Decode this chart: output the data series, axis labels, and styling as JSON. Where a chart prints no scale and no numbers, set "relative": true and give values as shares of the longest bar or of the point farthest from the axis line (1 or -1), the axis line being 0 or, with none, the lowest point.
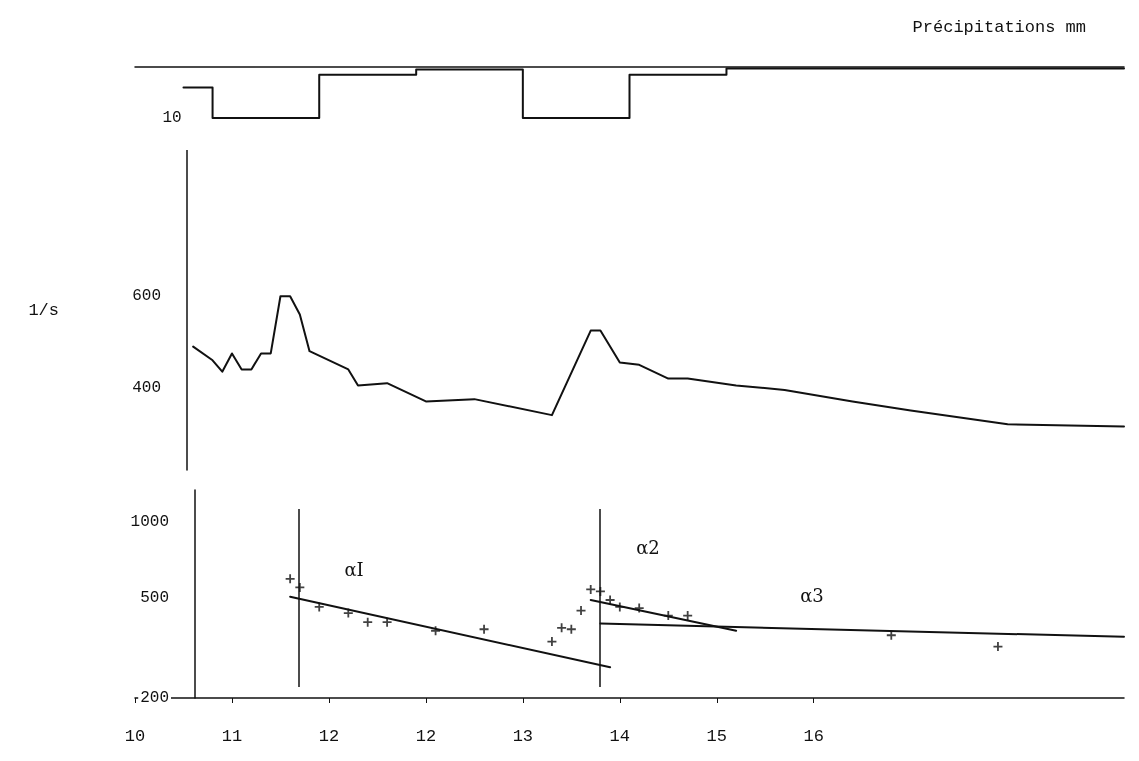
{
  "chart_data": [
    {
      "type": "step",
      "title": "Précipitations mm",
      "relative": true,
      "tick_labels": false,
      "grid": false,
      "color": "#111111",
      "annotations": [
        "10"
      ],
      "categories": [
        null,
        null,
        null,
        null,
        null,
        null,
        null,
        null,
        null,
        null,
        null,
        null,
        null,
        null,
        null,
        null,
        null,
        null,
        null,
        null,
        null,
        null,
        null,
        null,
        null,
        null,
        null,
        null,
        null,
        null,
        null,
        null,
        null,
        null,
        null,
        null,
        null,
        null,
        null,
        null,
        null,
        null,
        null,
        null,
        null,
        null,
        null,
        null,
        null,
        null,
        null,
        null,
        null,
        null,
        null,
        null,
        null,
        null,
        null,
        null,
        null,
        null,
        null,
        null,
        null,
        null,
        null,
        null,
        null,
        null,
        null,
        null,
        null,
        null,
        null,
        null,
        null,
        null,
        null,
        null,
        null,
        null,
        null,
        null,
        null,
        null,
        null,
        null,
        null,
        null,
        null,
        null,
        null,
        null,
        null,
        null,
        null,
        null,
        null,
        null,
        null,
        null,
        null
      ],
      "values": [
        null,
        null,
        null,
        null,
        null,
        -0.4,
        -0.4,
        -0.4,
        -1,
        -1,
        -1,
        -1,
        -1,
        -1,
        -1,
        -1,
        -1,
        -1,
        -1,
        -0.15,
        -0.15,
        -0.15,
        -0.15,
        -0.15,
        -0.15,
        -0.15,
        -0.15,
        -0.15,
        -0.15,
        -0.05,
        -0.05,
        -0.05,
        -0.05,
        -0.05,
        -0.05,
        -0.05,
        -0.05,
        -0.05,
        -0.05,
        -0.05,
        -1,
        -1,
        -1,
        -1,
        -1,
        -1,
        -1,
        -1,
        -1,
        -1,
        -1,
        -0.15,
        -0.15,
        -0.15,
        -0.15,
        -0.15,
        -0.15,
        -0.15,
        -0.15,
        -0.15,
        -0.15,
        -0.03,
        -0.03,
        -0.03,
        -0.03,
        -0.03,
        -0.03,
        -0.03,
        -0.03,
        -0.03,
        -0.03,
        -0.03,
        -0.03,
        -0.03,
        -0.03,
        -0.03,
        -0.03,
        -0.03,
        -0.03,
        -0.03,
        -0.03,
        -0.03,
        -0.03,
        -0.03,
        -0.03,
        -0.03,
        -0.03,
        -0.03,
        -0.03,
        -0.03,
        -0.03,
        -0.03,
        -0.03,
        -0.03,
        -0.03,
        -0.03,
        -0.03,
        -0.03,
        -0.03,
        -0.03,
        -0.03,
        -0.03,
        -0.03
      ]
    },
    {
      "type": "line",
      "ylabel": "1/s",
      "color": "#111111",
      "ylim": [
        220,
        920
      ],
      "yticks": [
        400,
        600
      ],
      "tick_labels": "y",
      "grid": false,
      "categories": [
        null,
        null,
        null,
        null,
        null,
        null,
        null,
        null,
        null,
        null,
        null,
        null,
        null,
        null,
        null,
        null,
        null,
        null,
        null,
        null,
        null,
        null,
        null,
        null,
        null,
        null,
        null,
        null,
        null,
        null,
        null,
        null,
        null,
        null,
        null,
        null,
        null,
        null,
        null,
        null,
        null,
        null,
        null,
        null,
        null,
        null,
        null,
        null,
        null,
        null,
        null,
        null,
        null,
        null,
        null,
        null,
        null,
        null,
        null,
        null,
        null,
        null,
        null,
        null,
        null,
        null,
        null,
        null,
        null,
        null,
        null,
        null,
        null,
        null,
        null,
        null,
        null,
        null,
        null,
        null,
        null,
        null,
        null,
        null,
        null,
        null,
        null,
        null,
        null,
        null,
        null,
        null,
        null,
        null,
        null,
        null,
        null,
        null,
        null,
        null,
        null,
        null,
        null
      ],
      "values": [
        null,
        null,
        null,
        null,
        null,
        null,
        490,
        null,
        460,
        435,
        475,
        440,
        440,
        475,
        475,
        600,
        600,
        560,
        480,
        null,
        null,
        null,
        440,
        405,
        null,
        null,
        410,
        null,
        null,
        null,
        370,
        null,
        null,
        null,
        null,
        375,
        null,
        null,
        null,
        null,
        null,
        null,
        null,
        340,
        null,
        null,
        null,
        525,
        525,
        null,
        455,
        null,
        450,
        null,
        null,
        420,
        null,
        420,
        null,
        null,
        null,
        null,
        405,
        null,
        null,
        null,
        null,
        395,
        null,
        null,
        null,
        null,
        null,
        null,
        370,
        null,
        null,
        null,
        null,
        null,
        350,
        null,
        null,
        null,
        null,
        null,
        null,
        null,
        null,
        null,
        320,
        null,
        null,
        null,
        null,
        null,
        null,
        null,
        null,
        null,
        null,
        null,
        315
      ]
    },
    {
      "type": "scatter",
      "log": "y",
      "marker": "cross",
      "ylim": [
        200,
        1340
      ],
      "yticks": [
        200,
        500,
        1000
      ],
      "grid": false,
      "annotations": [
        "αI",
        "α2",
        "α3"
      ],
      "categories": [
        "10",
        null,
        null,
        null,
        null,
        null,
        null,
        null,
        null,
        null,
        "11",
        null,
        null,
        null,
        null,
        null,
        null,
        null,
        null,
        null,
        "12",
        null,
        null,
        null,
        null,
        null,
        null,
        null,
        null,
        null,
        "12",
        null,
        null,
        null,
        null,
        null,
        null,
        null,
        null,
        null,
        "13",
        null,
        null,
        null,
        null,
        null,
        null,
        null,
        null,
        null,
        "14",
        null,
        null,
        null,
        null,
        null,
        null,
        null,
        null,
        null,
        "15",
        null,
        null,
        null,
        null,
        null,
        null,
        null,
        null,
        null,
        "16",
        null,
        null,
        null,
        null,
        null,
        null,
        null,
        null,
        null,
        null,
        null,
        null,
        null,
        null,
        null,
        null,
        null,
        null,
        null,
        null,
        null,
        null,
        null,
        null,
        null,
        null,
        null,
        null,
        null,
        null,
        null,
        null
      ],
      "series": [
        {
          "color": "#111111",
          "values": [
            null,
            null,
            null,
            null,
            null,
            null,
            null,
            null,
            null,
            null,
            null,
            null,
            null,
            null,
            null,
            null,
            595,
            550,
            null,
            460,
            null,
            null,
            435,
            null,
            400,
            null,
            400,
            null,
            null,
            null,
            null,
            370,
            null,
            null,
            null,
            null,
            375,
            null,
            null,
            null,
            null,
            null,
            null,
            335,
            380,
            375,
            445,
            540,
            530,
            490,
            460,
            null,
            455,
            null,
            null,
            425,
            null,
            425,
            null,
            null,
            null,
            null,
            null,
            null,
            null,
            null,
            null,
            null,
            null,
            null,
            null,
            null,
            null,
            null,
            null,
            null,
            null,
            null,
            355,
            null,
            null,
            null,
            null,
            null,
            null,
            null,
            null,
            null,
            null,
            320,
            null,
            null,
            null,
            null,
            null,
            null,
            null,
            null,
            null,
            null,
            null,
            null,
            null
          ]
        },
        {
          "type": "line",
          "marker": "none",
          "color": "#111111",
          "values": [
            null,
            null,
            null,
            null,
            null,
            null,
            null,
            null,
            null,
            null,
            null,
            null,
            null,
            null,
            null,
            null,
            505,
            null,
            null,
            null,
            null,
            null,
            null,
            null,
            null,
            null,
            null,
            null,
            null,
            null,
            null,
            null,
            null,
            null,
            null,
            null,
            null,
            null,
            null,
            null,
            null,
            null,
            null,
            null,
            null,
            null,
            null,
            null,
            null,
            265,
            null,
            null,
            null,
            null,
            null,
            null,
            null,
            null,
            null,
            null,
            null,
            null,
            null,
            null,
            null,
            null,
            null,
            null,
            null,
            null,
            null,
            null,
            null,
            null,
            null,
            null,
            null,
            null,
            null,
            null,
            null,
            null,
            null,
            null,
            null,
            null,
            null,
            null,
            null,
            null,
            null,
            null,
            null,
            null,
            null,
            null,
            null,
            null,
            null,
            null,
            null,
            null,
            null
          ]
        },
        {
          "type": "line",
          "marker": "none",
          "color": "#111111",
          "values": [
            null,
            null,
            null,
            null,
            null,
            null,
            null,
            null,
            null,
            null,
            null,
            null,
            null,
            null,
            null,
            null,
            null,
            null,
            null,
            null,
            null,
            null,
            null,
            null,
            null,
            null,
            null,
            null,
            null,
            null,
            null,
            null,
            null,
            null,
            null,
            null,
            null,
            null,
            null,
            null,
            null,
            null,
            null,
            null,
            null,
            null,
            null,
            490,
            null,
            null,
            null,
            null,
            null,
            null,
            null,
            null,
            null,
            null,
            null,
            null,
            null,
            null,
            370,
            null,
            null,
            null,
            null,
            null,
            null,
            null,
            null,
            null,
            null,
            null,
            null,
            null,
            null,
            null,
            null,
            null,
            null,
            null,
            null,
            null,
            null,
            null,
            null,
            null,
            null,
            null,
            null,
            null,
            null,
            null,
            null,
            null,
            null,
            null,
            null,
            null,
            null,
            null,
            null
          ]
        },
        {
          "type": "line",
          "marker": "none",
          "color": "#111111",
          "values": [
            null,
            null,
            null,
            null,
            null,
            null,
            null,
            null,
            null,
            null,
            null,
            null,
            null,
            null,
            null,
            null,
            null,
            null,
            null,
            null,
            null,
            null,
            null,
            null,
            null,
            null,
            null,
            null,
            null,
            null,
            null,
            null,
            null,
            null,
            null,
            null,
            null,
            null,
            null,
            null,
            null,
            null,
            null,
            null,
            null,
            null,
            null,
            null,
            395,
            null,
            null,
            null,
            null,
            null,
            null,
            null,
            null,
            null,
            null,
            null,
            null,
            null,
            null,
            null,
            null,
            null,
            null,
            null,
            null,
            null,
            null,
            null,
            null,
            null,
            null,
            null,
            null,
            null,
            null,
            null,
            null,
            null,
            null,
            null,
            null,
            null,
            null,
            null,
            null,
            null,
            null,
            null,
            null,
            null,
            null,
            null,
            null,
            null,
            null,
            null,
            null,
            null,
            350
          ]
        }
      ]
    }
  ]
}
